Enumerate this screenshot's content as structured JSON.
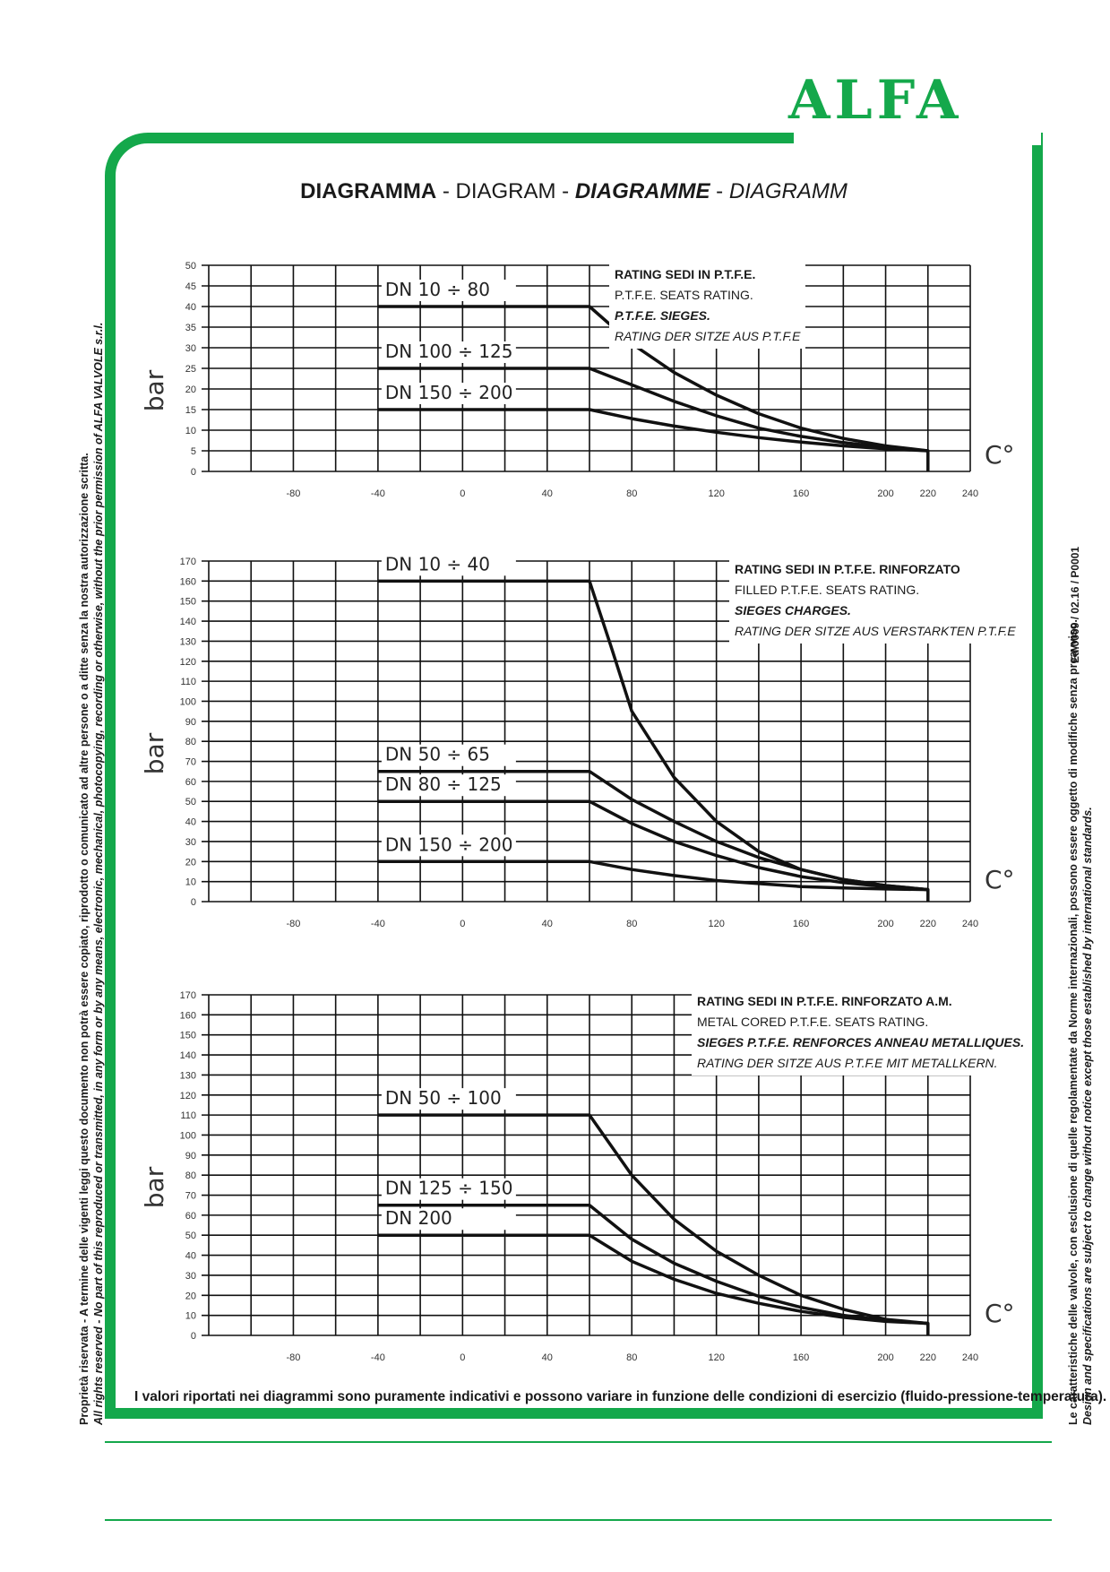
{
  "brand": {
    "logo_text": "ALFA",
    "color": "#14a84b"
  },
  "title": {
    "part1": "DIAGRAMMA",
    "sep1": " - ",
    "part2": "DIAGRAM",
    "sep2": " - ",
    "part3": "DIAGRAMME",
    "sep3": " - ",
    "part4": "DIAGRAMM"
  },
  "side_left": {
    "line1": "Proprietà riservata - A termine delle vigenti leggi questo documento non potrà essere copiato, riprodotto o comunicato ad altre persone o a ditte senza la nostra autorizzazione scritta.",
    "line2": "All rights reserved - No part of this reproduced or transmitted, in any form or by any means, electronic, mechanical, photocopying, recording or otherwise, without the prior permission of ALFA VALVOLE s.r.l."
  },
  "side_right": {
    "line1": "Le caratteristiche delle valvole, con esclusione di quelle regolamentate da Norme internazionali, possono essere oggetto di modifiche senza preavviso.",
    "line2": "Design and specifications are subject to change without notice except those established by international standards.",
    "edition": "Ed.0009 / 02.16 / P0001"
  },
  "footnote": "I valori riportati nei diagrammi sono puramente indicativi e possono variare in funzione delle condizioni di esercizio (fluido-pressione-temperatura).",
  "chart_data": [
    {
      "type": "line",
      "ylabel": "bar",
      "xlabel": "C°",
      "xlim": [
        -120,
        240
      ],
      "ylim": [
        0,
        50
      ],
      "xticks": [
        -80,
        -40,
        0,
        40,
        80,
        120,
        160,
        200,
        220,
        240
      ],
      "yticks": [
        0,
        5,
        10,
        15,
        20,
        25,
        30,
        35,
        40,
        45,
        50
      ],
      "legend": [
        "RATING SEDI IN P.T.F.E.",
        "P.T.F.E. SEATS RATING.",
        "P.T.F.E. SIEGES.",
        "RATING DER SITZE AUS P.T.F.E"
      ],
      "series": [
        {
          "name": "DN 10 ÷ 80",
          "x": [
            -40,
            60,
            80,
            100,
            120,
            140,
            160,
            180,
            200,
            220,
            220
          ],
          "y": [
            40,
            40,
            31,
            24,
            18.5,
            14,
            10.5,
            8,
            6.2,
            5,
            0
          ]
        },
        {
          "name": "DN 100 ÷ 125",
          "x": [
            -40,
            60,
            80,
            100,
            120,
            140,
            160,
            180,
            200,
            220
          ],
          "y": [
            25,
            25,
            21,
            17,
            13.5,
            10.5,
            8.5,
            7,
            5.8,
            5
          ]
        },
        {
          "name": "DN 150 ÷ 200",
          "x": [
            -40,
            60,
            80,
            100,
            120,
            140,
            160,
            180,
            200,
            220
          ],
          "y": [
            15,
            15,
            12.8,
            11,
            9.5,
            8.2,
            7.1,
            6.2,
            5.5,
            5
          ]
        }
      ]
    },
    {
      "type": "line",
      "ylabel": "bar",
      "xlabel": "C°",
      "xlim": [
        -120,
        240
      ],
      "ylim": [
        0,
        170
      ],
      "xticks": [
        -80,
        -40,
        0,
        40,
        80,
        120,
        160,
        200,
        220,
        240
      ],
      "yticks": [
        0,
        10,
        20,
        30,
        40,
        50,
        60,
        70,
        80,
        90,
        100,
        110,
        120,
        130,
        140,
        150,
        160,
        170
      ],
      "legend": [
        "RATING SEDI IN P.T.F.E. RINFORZATO",
        "FILLED P.T.F.E. SEATS RATING.",
        "SIEGES CHARGES.",
        "RATING DER SITZE AUS VERSTARKTEN P.T.F.E"
      ],
      "series": [
        {
          "name": "DN 10 ÷ 40",
          "x": [
            -40,
            60,
            70,
            80,
            100,
            120,
            140,
            160,
            180,
            200,
            220,
            220
          ],
          "y": [
            160,
            160,
            128,
            95,
            62,
            40,
            25,
            16,
            11,
            8,
            6,
            0
          ]
        },
        {
          "name": "DN 50 ÷ 65",
          "x": [
            -40,
            60,
            80,
            100,
            120,
            140,
            160,
            180,
            200,
            220
          ],
          "y": [
            65,
            65,
            51,
            40,
            30,
            22,
            16,
            11,
            8,
            6
          ]
        },
        {
          "name": "DN 80 ÷ 125",
          "x": [
            -40,
            60,
            80,
            100,
            120,
            140,
            160,
            180,
            200,
            220
          ],
          "y": [
            50,
            50,
            39,
            30,
            23,
            17,
            12.5,
            9.5,
            7.5,
            6
          ]
        },
        {
          "name": "DN 150 ÷ 200",
          "x": [
            -40,
            60,
            80,
            100,
            120,
            140,
            160,
            180,
            200,
            220
          ],
          "y": [
            20,
            20,
            16,
            13,
            10.5,
            9,
            7.5,
            6.8,
            6.3,
            6
          ]
        }
      ]
    },
    {
      "type": "line",
      "ylabel": "bar",
      "xlabel": "C°",
      "xlim": [
        -120,
        240
      ],
      "ylim": [
        0,
        170
      ],
      "xticks": [
        -80,
        -40,
        0,
        40,
        80,
        120,
        160,
        200,
        220,
        240
      ],
      "yticks": [
        0,
        10,
        20,
        30,
        40,
        50,
        60,
        70,
        80,
        90,
        100,
        110,
        120,
        130,
        140,
        150,
        160,
        170
      ],
      "legend": [
        "RATING SEDI IN P.T.F.E. RINFORZATO A.M.",
        "METAL CORED P.T.F.E. SEATS RATING.",
        "SIEGES P.T.F.E. RENFORCES ANNEAU METALLIQUES.",
        "RATING DER SITZE AUS P.T.F.E MIT METALLKERN."
      ],
      "series": [
        {
          "name": "DN 50 ÷ 100",
          "x": [
            -40,
            60,
            80,
            100,
            120,
            140,
            160,
            180,
            200,
            220,
            220
          ],
          "y": [
            110,
            110,
            80,
            58,
            42,
            30,
            20,
            13,
            8,
            6,
            0
          ]
        },
        {
          "name": "DN 125 ÷ 150",
          "x": [
            -40,
            60,
            80,
            100,
            120,
            140,
            160,
            180,
            200,
            220
          ],
          "y": [
            65,
            65,
            48,
            36,
            27,
            19.5,
            14,
            10,
            7.5,
            6
          ]
        },
        {
          "name": "DN  200",
          "x": [
            -40,
            60,
            80,
            100,
            120,
            140,
            160,
            180,
            200,
            220
          ],
          "y": [
            50,
            50,
            37,
            28,
            21,
            16,
            12,
            9,
            7,
            6
          ]
        }
      ]
    }
  ]
}
